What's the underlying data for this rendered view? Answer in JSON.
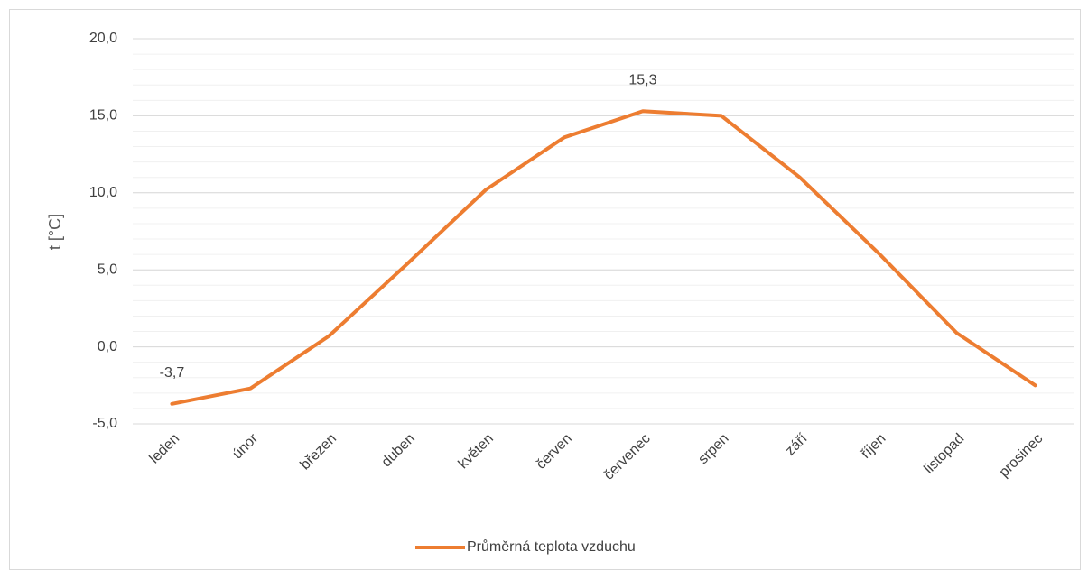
{
  "chart_data": {
    "type": "line",
    "y_axis_label": "t [°C]",
    "categories": [
      "leden",
      "únor",
      "březen",
      "duben",
      "květen",
      "červen",
      "červenec",
      "srpen",
      "září",
      "říjen",
      "listopad",
      "prosinec"
    ],
    "series": [
      {
        "name": "Průměrná teplota vzduchu",
        "color": "#ed7d31",
        "values": [
          -3.7,
          -2.7,
          0.7,
          5.4,
          10.2,
          13.6,
          15.3,
          15.0,
          11.0,
          6.1,
          0.9,
          -2.5
        ],
        "value_labels": [
          "-3,7",
          null,
          null,
          null,
          null,
          null,
          "15,3",
          null,
          null,
          null,
          null,
          null
        ]
      }
    ],
    "ylim": [
      -5,
      20
    ],
    "yticks": [
      {
        "value": -5,
        "label": "-5,0"
      },
      {
        "value": 0,
        "label": "0,0"
      },
      {
        "value": 5,
        "label": "5,0"
      },
      {
        "value": 10,
        "label": "10,0"
      },
      {
        "value": 15,
        "label": "15,0"
      },
      {
        "value": 20,
        "label": "20,0"
      }
    ],
    "grid": true,
    "minor_grid_step": 1,
    "legend": "bottom"
  }
}
